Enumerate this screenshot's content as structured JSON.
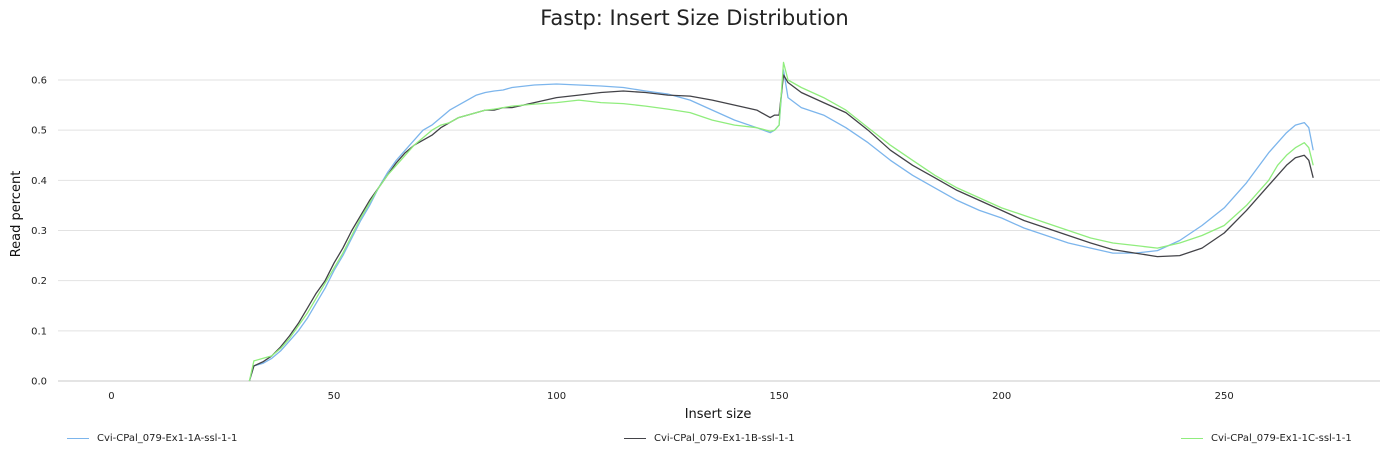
{
  "chart_data": {
    "type": "line",
    "title": "Fastp: Insert Size Distribution",
    "xlabel": "Insert size",
    "ylabel": "Read percent",
    "xlim": [
      -12,
      285
    ],
    "ylim": [
      0,
      0.6
    ],
    "xticks": [
      0,
      50,
      100,
      150,
      200,
      250
    ],
    "yticks": [
      0,
      0.1,
      0.2,
      0.3,
      0.4,
      0.5,
      0.6
    ],
    "xtick_labels": [
      "0",
      "50",
      "100",
      "150",
      "200",
      "250"
    ],
    "ytick_labels": [
      "0.0",
      "0.1",
      "0.2",
      "0.3",
      "0.4",
      "0.5",
      "0.6"
    ],
    "grid": true,
    "legend_position": "bottom",
    "series": [
      {
        "name": "Cvi-CPal_079-Ex1-1A-ssl-1-1",
        "color": "#7cb5ec",
        "x": [
          31,
          32,
          34,
          36,
          38,
          40,
          42,
          44,
          46,
          48,
          50,
          52,
          54,
          56,
          58,
          60,
          62,
          64,
          66,
          68,
          70,
          72,
          74,
          76,
          78,
          80,
          82,
          84,
          86,
          88,
          90,
          95,
          100,
          105,
          110,
          115,
          120,
          125,
          130,
          135,
          140,
          145,
          148,
          149,
          150,
          151,
          152,
          155,
          160,
          165,
          170,
          175,
          180,
          185,
          190,
          195,
          200,
          205,
          210,
          215,
          220,
          225,
          230,
          235,
          240,
          245,
          250,
          255,
          260,
          262,
          264,
          266,
          268,
          269,
          270
        ],
        "values": [
          0.0,
          0.03,
          0.035,
          0.045,
          0.06,
          0.08,
          0.1,
          0.125,
          0.155,
          0.185,
          0.22,
          0.25,
          0.285,
          0.32,
          0.35,
          0.385,
          0.415,
          0.44,
          0.46,
          0.48,
          0.5,
          0.51,
          0.525,
          0.54,
          0.55,
          0.56,
          0.57,
          0.575,
          0.578,
          0.58,
          0.585,
          0.59,
          0.592,
          0.59,
          0.588,
          0.585,
          0.578,
          0.572,
          0.56,
          0.54,
          0.52,
          0.505,
          0.495,
          0.5,
          0.51,
          0.62,
          0.565,
          0.545,
          0.53,
          0.505,
          0.475,
          0.44,
          0.41,
          0.385,
          0.36,
          0.34,
          0.325,
          0.305,
          0.29,
          0.275,
          0.265,
          0.255,
          0.255,
          0.26,
          0.28,
          0.31,
          0.345,
          0.395,
          0.455,
          0.475,
          0.495,
          0.51,
          0.515,
          0.505,
          0.46
        ]
      },
      {
        "name": "Cvi-CPal_079-Ex1-1B-ssl-1-1",
        "color": "#434348",
        "x": [
          31,
          32,
          34,
          36,
          38,
          40,
          42,
          44,
          46,
          48,
          50,
          52,
          54,
          56,
          58,
          60,
          62,
          64,
          66,
          68,
          70,
          72,
          74,
          76,
          78,
          80,
          82,
          84,
          86,
          88,
          90,
          95,
          100,
          105,
          110,
          115,
          120,
          125,
          130,
          135,
          140,
          145,
          148,
          149,
          150,
          151,
          152,
          155,
          160,
          165,
          170,
          175,
          180,
          185,
          190,
          195,
          200,
          205,
          210,
          215,
          220,
          225,
          230,
          235,
          240,
          245,
          250,
          255,
          260,
          262,
          264,
          266,
          268,
          269,
          270
        ],
        "values": [
          0.0,
          0.03,
          0.038,
          0.05,
          0.068,
          0.09,
          0.115,
          0.145,
          0.175,
          0.2,
          0.235,
          0.265,
          0.3,
          0.33,
          0.36,
          0.385,
          0.41,
          0.435,
          0.455,
          0.47,
          0.48,
          0.49,
          0.505,
          0.515,
          0.525,
          0.53,
          0.535,
          0.54,
          0.54,
          0.545,
          0.545,
          0.555,
          0.565,
          0.57,
          0.575,
          0.578,
          0.575,
          0.57,
          0.568,
          0.56,
          0.55,
          0.54,
          0.525,
          0.53,
          0.53,
          0.61,
          0.595,
          0.575,
          0.555,
          0.535,
          0.5,
          0.46,
          0.43,
          0.405,
          0.38,
          0.36,
          0.34,
          0.32,
          0.305,
          0.29,
          0.275,
          0.262,
          0.255,
          0.248,
          0.25,
          0.265,
          0.295,
          0.34,
          0.39,
          0.41,
          0.43,
          0.445,
          0.45,
          0.44,
          0.405
        ]
      },
      {
        "name": "Cvi-CPal_079-Ex1-1C-ssl-1-1",
        "color": "#90ed7d",
        "x": [
          31,
          32,
          34,
          36,
          38,
          40,
          42,
          44,
          46,
          48,
          50,
          52,
          54,
          56,
          58,
          60,
          62,
          64,
          66,
          68,
          70,
          72,
          74,
          76,
          78,
          80,
          82,
          84,
          86,
          88,
          90,
          95,
          100,
          105,
          110,
          115,
          120,
          125,
          130,
          135,
          140,
          145,
          148,
          149,
          150,
          151,
          152,
          155,
          160,
          165,
          170,
          175,
          180,
          185,
          190,
          195,
          200,
          205,
          210,
          215,
          220,
          225,
          230,
          235,
          240,
          245,
          250,
          255,
          260,
          262,
          264,
          266,
          268,
          269,
          270
        ],
        "values": [
          0.0,
          0.04,
          0.045,
          0.05,
          0.065,
          0.085,
          0.11,
          0.135,
          0.165,
          0.195,
          0.225,
          0.255,
          0.29,
          0.325,
          0.355,
          0.385,
          0.41,
          0.43,
          0.45,
          0.47,
          0.485,
          0.5,
          0.51,
          0.515,
          0.525,
          0.53,
          0.535,
          0.54,
          0.542,
          0.545,
          0.548,
          0.552,
          0.555,
          0.56,
          0.555,
          0.553,
          0.548,
          0.542,
          0.535,
          0.52,
          0.51,
          0.505,
          0.498,
          0.5,
          0.51,
          0.635,
          0.6,
          0.585,
          0.565,
          0.54,
          0.505,
          0.47,
          0.44,
          0.41,
          0.385,
          0.365,
          0.345,
          0.33,
          0.315,
          0.3,
          0.285,
          0.275,
          0.27,
          0.265,
          0.275,
          0.29,
          0.31,
          0.35,
          0.4,
          0.43,
          0.45,
          0.465,
          0.475,
          0.465,
          0.43
        ]
      }
    ]
  }
}
